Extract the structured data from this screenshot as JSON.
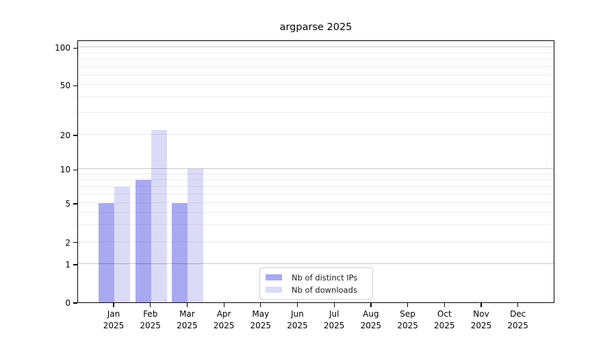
{
  "chart_data": {
    "type": "bar",
    "title": "argparse 2025",
    "categories": [
      "Jan",
      "Feb",
      "Mar",
      "Apr",
      "May",
      "Jun",
      "Jul",
      "Aug",
      "Sep",
      "Oct",
      "Nov",
      "Dec"
    ],
    "x_tick_year_line": "2025",
    "y_ticks": [
      0,
      1,
      2,
      5,
      10,
      20,
      50,
      100
    ],
    "y_minor_gridlines": [
      2,
      3,
      4,
      5,
      6,
      7,
      8,
      9,
      20,
      30,
      40,
      50,
      60,
      70,
      80,
      90
    ],
    "y_major_gridlines": [
      1,
      10,
      100
    ],
    "y_scale": "log-like with ticks 0,1,2,5,10,20,50,100",
    "ylim": [
      0,
      110
    ],
    "grid": "on",
    "legend_position": "lower center",
    "series": [
      {
        "name": "Nb of distinct IPs",
        "color": "#a9a9f1",
        "values": [
          5,
          8,
          5,
          null,
          null,
          null,
          null,
          null,
          null,
          null,
          null,
          null
        ]
      },
      {
        "name": "Nb of downloads",
        "color": "#dbdbf8",
        "values": [
          7,
          22,
          10,
          null,
          null,
          null,
          null,
          null,
          null,
          null,
          null,
          null
        ]
      }
    ]
  }
}
